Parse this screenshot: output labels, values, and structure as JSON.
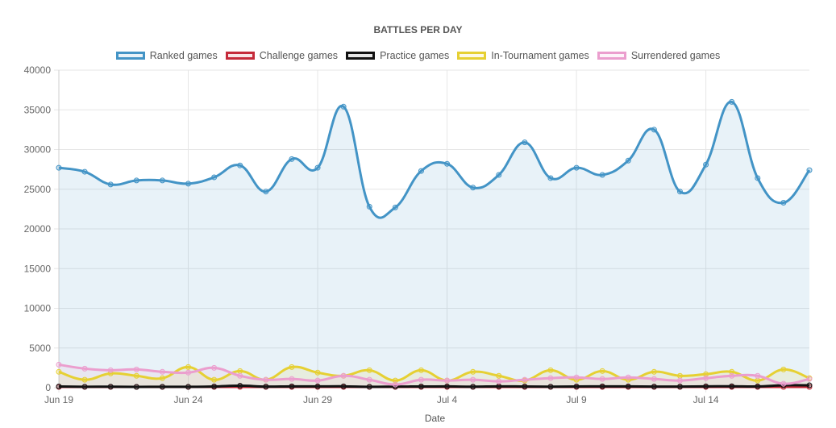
{
  "chart_data": {
    "type": "line",
    "title": "BATTLES PER DAY",
    "xlabel": "Date",
    "ylabel": "",
    "ylim": [
      0,
      40000
    ],
    "yticks": [
      0,
      5000,
      10000,
      15000,
      20000,
      25000,
      30000,
      35000,
      40000
    ],
    "xtick_labels": [
      "Jun 19",
      "Jun 24",
      "Jun 29",
      "Jul 4",
      "Jul 9",
      "Jul 14"
    ],
    "xtick_indices": [
      0,
      5,
      10,
      15,
      20,
      25
    ],
    "categories": [
      "Jun 19",
      "Jun 20",
      "Jun 21",
      "Jun 22",
      "Jun 23",
      "Jun 24",
      "Jun 25",
      "Jun 26",
      "Jun 27",
      "Jun 28",
      "Jun 29",
      "Jun 30",
      "Jul 1",
      "Jul 2",
      "Jul 3",
      "Jul 4",
      "Jul 5",
      "Jul 6",
      "Jul 7",
      "Jul 8",
      "Jul 9",
      "Jul 10",
      "Jul 11",
      "Jul 12",
      "Jul 13",
      "Jul 14",
      "Jul 15",
      "Jul 16",
      "Jul 17",
      "Jul 18"
    ],
    "series": [
      {
        "name": "Ranked games",
        "color": "#4394c6",
        "fill": "rgba(67,148,198,0.12)",
        "values": [
          27700,
          27200,
          25600,
          26100,
          26100,
          25700,
          26500,
          28000,
          24700,
          28800,
          27700,
          35400,
          22800,
          22700,
          27300,
          28200,
          25200,
          26800,
          30900,
          26400,
          27700,
          26800,
          28600,
          32500,
          24700,
          28100,
          36000,
          26400,
          23300,
          27400
        ]
      },
      {
        "name": "Challenge games",
        "color": "#c52a3a",
        "fill": "rgba(197,42,58,0.12)",
        "values": [
          100,
          100,
          100,
          100,
          100,
          100,
          100,
          100,
          100,
          100,
          100,
          100,
          100,
          100,
          100,
          100,
          100,
          100,
          100,
          100,
          100,
          100,
          100,
          100,
          100,
          100,
          100,
          100,
          100,
          100
        ]
      },
      {
        "name": "Practice games",
        "color": "#111111",
        "fill": "rgba(40,40,40,0.12)",
        "values": [
          150,
          120,
          130,
          100,
          120,
          110,
          150,
          250,
          140,
          170,
          160,
          170,
          120,
          140,
          150,
          160,
          130,
          170,
          150,
          130,
          150,
          170,
          160,
          140,
          140,
          170,
          180,
          160,
          300,
          300
        ]
      },
      {
        "name": "In-Tournament games",
        "color": "#e6d033",
        "fill": "rgba(230,208,51,0.12)",
        "values": [
          2000,
          1000,
          1800,
          1500,
          1200,
          2600,
          1000,
          2100,
          1000,
          2600,
          1900,
          1500,
          2200,
          900,
          2200,
          900,
          2000,
          1500,
          900,
          2200,
          1000,
          2100,
          1000,
          2000,
          1500,
          1700,
          2000,
          900,
          2300,
          1200
        ]
      },
      {
        "name": "Surrendered games",
        "color": "#eb9ece",
        "fill": "rgba(235,158,206,0.12)",
        "values": [
          2900,
          2400,
          2200,
          2300,
          2000,
          1900,
          2500,
          1500,
          1000,
          1100,
          900,
          1500,
          1000,
          400,
          1000,
          900,
          1000,
          800,
          1000,
          1200,
          1300,
          1100,
          1300,
          1100,
          900,
          1200,
          1500,
          1500,
          500,
          1100
        ]
      }
    ]
  }
}
